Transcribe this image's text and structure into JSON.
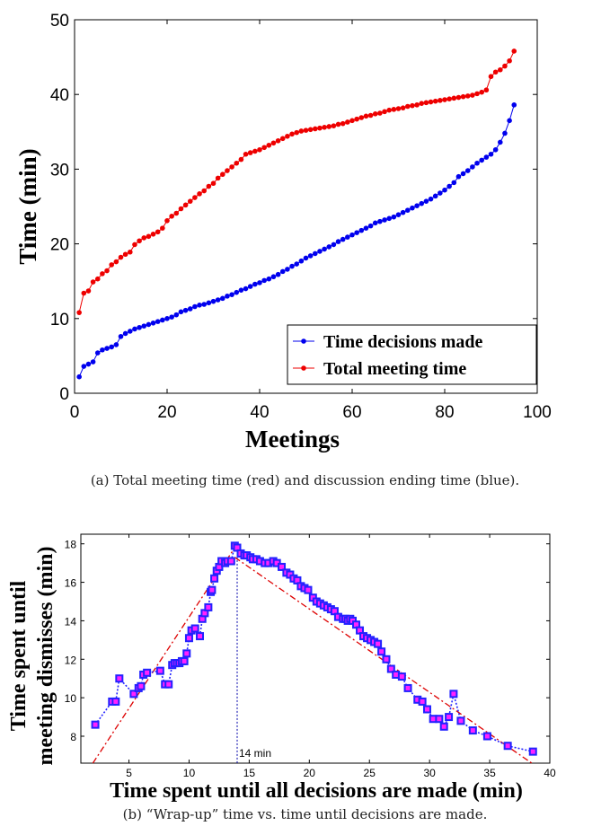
{
  "chart_data": [
    {
      "type": "line",
      "xlabel": "Meetings",
      "ylabel": "Time (min)",
      "xlim": [
        0,
        100
      ],
      "ylim": [
        0,
        50
      ],
      "xticks": [
        "0",
        "20",
        "40",
        "60",
        "80",
        "100"
      ],
      "yticks": [
        "0",
        "10",
        "20",
        "30",
        "40",
        "50"
      ],
      "legend_placement": "bottom-right",
      "caption": "(a) Total meeting time (red) and discussion ending time (blue).",
      "series": [
        {
          "name": "Time decisions made",
          "color": "#0000ee",
          "values": [
            2.2,
            3.6,
            3.9,
            4.2,
            5.4,
            5.8,
            6.0,
            6.2,
            6.5,
            7.6,
            8.0,
            8.3,
            8.6,
            8.8,
            9.0,
            9.2,
            9.4,
            9.6,
            9.8,
            10.0,
            10.2,
            10.5,
            10.9,
            11.1,
            11.3,
            11.6,
            11.8,
            11.9,
            12.1,
            12.3,
            12.5,
            12.7,
            13.0,
            13.2,
            13.5,
            13.8,
            14.0,
            14.3,
            14.6,
            14.8,
            15.1,
            15.3,
            15.6,
            15.9,
            16.3,
            16.6,
            17.0,
            17.3,
            17.7,
            18.1,
            18.4,
            18.7,
            19.0,
            19.3,
            19.6,
            19.9,
            20.3,
            20.6,
            20.9,
            21.2,
            21.5,
            21.8,
            22.1,
            22.4,
            22.8,
            23.0,
            23.2,
            23.4,
            23.6,
            23.9,
            24.2,
            24.5,
            24.8,
            25.1,
            25.4,
            25.7,
            26.0,
            26.4,
            26.8,
            27.2,
            27.7,
            28.2,
            29.0,
            29.4,
            29.8,
            30.3,
            30.8,
            31.2,
            31.6,
            32.0,
            32.6,
            33.6,
            34.8,
            36.5,
            38.6
          ]
        },
        {
          "name": "Total meeting time",
          "color": "#ee0000",
          "values": [
            10.8,
            13.4,
            13.7,
            14.9,
            15.3,
            16.0,
            16.4,
            17.2,
            17.6,
            18.2,
            18.6,
            18.9,
            19.9,
            20.4,
            20.8,
            21.0,
            21.3,
            21.6,
            22.1,
            23.1,
            23.7,
            24.1,
            24.7,
            25.2,
            25.7,
            26.2,
            26.7,
            27.1,
            27.7,
            28.1,
            28.8,
            29.3,
            29.8,
            30.3,
            30.8,
            31.3,
            32.0,
            32.2,
            32.4,
            32.6,
            32.9,
            33.2,
            33.5,
            33.8,
            34.1,
            34.4,
            34.7,
            34.9,
            35.1,
            35.2,
            35.3,
            35.4,
            35.5,
            35.6,
            35.7,
            35.8,
            36.0,
            36.1,
            36.3,
            36.5,
            36.7,
            36.9,
            37.1,
            37.2,
            37.4,
            37.5,
            37.7,
            37.9,
            38.0,
            38.1,
            38.2,
            38.4,
            38.5,
            38.6,
            38.8,
            38.9,
            39.0,
            39.1,
            39.2,
            39.3,
            39.4,
            39.5,
            39.6,
            39.7,
            39.8,
            39.9,
            40.1,
            40.3,
            40.6,
            42.4,
            43.0,
            43.3,
            43.8,
            44.5,
            45.8
          ]
        }
      ]
    },
    {
      "type": "scatter",
      "xlabel": "Time spent until  all decisions are made (min)",
      "ylabel": [
        "Time spent until",
        "meeting dismisses (min)"
      ],
      "xlim": [
        1,
        40
      ],
      "ylim": [
        6.6,
        18.5
      ],
      "xticks": [
        "5",
        "10",
        "15",
        "20",
        "25",
        "30",
        "35",
        "40"
      ],
      "yticks": [
        "8",
        "10",
        "12",
        "14",
        "16",
        "18"
      ],
      "annotation": "14 min",
      "annotation_x": 14,
      "caption": "(b) “Wrap-up” time vs. time until decisions are made.",
      "marker_fill": "#ff22ff",
      "marker_edge": "#2222ff",
      "trend_color": "#dd0000",
      "points": [
        [
          2.2,
          8.6
        ],
        [
          3.6,
          9.8
        ],
        [
          3.9,
          9.8
        ],
        [
          4.2,
          11.0
        ],
        [
          5.4,
          10.2
        ],
        [
          5.8,
          10.5
        ],
        [
          6.0,
          10.6
        ],
        [
          6.2,
          11.2
        ],
        [
          6.5,
          11.3
        ],
        [
          7.6,
          11.4
        ],
        [
          8.0,
          10.7
        ],
        [
          8.3,
          10.7
        ],
        [
          8.6,
          11.7
        ],
        [
          8.8,
          11.8
        ],
        [
          9.0,
          11.8
        ],
        [
          9.2,
          11.8
        ],
        [
          9.4,
          11.9
        ],
        [
          9.6,
          11.9
        ],
        [
          9.8,
          12.3
        ],
        [
          10.0,
          13.1
        ],
        [
          10.2,
          13.5
        ],
        [
          10.5,
          13.6
        ],
        [
          10.9,
          13.2
        ],
        [
          11.1,
          14.1
        ],
        [
          11.3,
          14.4
        ],
        [
          11.6,
          14.7
        ],
        [
          11.8,
          15.5
        ],
        [
          11.9,
          15.6
        ],
        [
          12.1,
          16.2
        ],
        [
          12.3,
          16.6
        ],
        [
          12.5,
          16.8
        ],
        [
          12.7,
          17.1
        ],
        [
          13.0,
          17.0
        ],
        [
          13.2,
          17.1
        ],
        [
          13.5,
          17.1
        ],
        [
          13.8,
          17.9
        ],
        [
          14.0,
          17.8
        ],
        [
          14.3,
          17.5
        ],
        [
          14.6,
          17.4
        ],
        [
          14.8,
          17.4
        ],
        [
          15.1,
          17.3
        ],
        [
          15.3,
          17.2
        ],
        [
          15.6,
          17.2
        ],
        [
          15.9,
          17.1
        ],
        [
          16.3,
          17.0
        ],
        [
          16.6,
          17.0
        ],
        [
          17.0,
          17.1
        ],
        [
          17.3,
          17.0
        ],
        [
          17.7,
          16.8
        ],
        [
          18.1,
          16.5
        ],
        [
          18.4,
          16.4
        ],
        [
          18.7,
          16.2
        ],
        [
          19.0,
          16.1
        ],
        [
          19.3,
          15.8
        ],
        [
          19.6,
          15.7
        ],
        [
          19.9,
          15.6
        ],
        [
          20.3,
          15.2
        ],
        [
          20.6,
          15.0
        ],
        [
          20.9,
          14.9
        ],
        [
          21.2,
          14.8
        ],
        [
          21.5,
          14.7
        ],
        [
          21.8,
          14.6
        ],
        [
          22.1,
          14.5
        ],
        [
          22.4,
          14.2
        ],
        [
          22.8,
          14.1
        ],
        [
          23.0,
          14.1
        ],
        [
          23.2,
          14.0
        ],
        [
          23.4,
          14.1
        ],
        [
          23.6,
          14.0
        ],
        [
          23.9,
          13.8
        ],
        [
          24.2,
          13.5
        ],
        [
          24.5,
          13.2
        ],
        [
          24.8,
          13.1
        ],
        [
          25.1,
          13.0
        ],
        [
          25.4,
          12.9
        ],
        [
          25.7,
          12.8
        ],
        [
          26.0,
          12.4
        ],
        [
          26.4,
          12.0
        ],
        [
          26.8,
          11.5
        ],
        [
          27.2,
          11.2
        ],
        [
          27.7,
          11.1
        ],
        [
          28.2,
          10.5
        ],
        [
          29.0,
          9.9
        ],
        [
          29.4,
          9.8
        ],
        [
          29.8,
          9.4
        ],
        [
          30.3,
          8.9
        ],
        [
          30.8,
          8.9
        ],
        [
          31.2,
          8.5
        ],
        [
          31.6,
          9.0
        ],
        [
          32.0,
          10.2
        ],
        [
          32.6,
          8.8
        ],
        [
          33.6,
          8.3
        ],
        [
          34.8,
          8.0
        ],
        [
          36.5,
          7.5
        ],
        [
          38.6,
          7.2
        ]
      ]
    }
  ]
}
